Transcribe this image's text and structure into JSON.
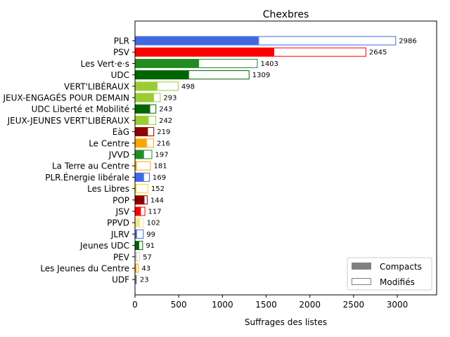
{
  "chart_data": {
    "type": "bar",
    "orientation": "horizontal",
    "stacked": true,
    "title": "Chexbres",
    "xlabel": "Suffrages des listes",
    "ylabel": "",
    "xlim": [
      0,
      3450
    ],
    "xticks": [
      0,
      500,
      1000,
      1500,
      2000,
      2500,
      3000
    ],
    "grid": false,
    "legend_position": "bottom-right",
    "categories": [
      "PLR",
      "PSV",
      "Les Vert·e·s",
      "UDC",
      "VERT'LIBÉRAUX",
      "JEUX-ENGAGÉS POUR DEMAIN",
      "UDC Liberté et Mobilité",
      "JEUX-JEUNES VERT'LIBÉRAUX",
      "EàG",
      "Le Centre",
      "JVVD",
      "La Terre au Centre",
      "PLR.Énergie libérale",
      "Les Libres",
      "POP",
      "JSV",
      "PPVD",
      "JLRV",
      "Jeunes UDC",
      "PEV",
      "Les Jeunes du Centre",
      "UDF"
    ],
    "colors": [
      "#4169e1",
      "#ff0000",
      "#228b22",
      "#006400",
      "#9acd32",
      "#9acd32",
      "#006400",
      "#9acd32",
      "#8b0000",
      "#ffa500",
      "#228b22",
      "#ffa500",
      "#4169e1",
      "#ffd700",
      "#8b0000",
      "#ff0000",
      "#f0e68c",
      "#4169e1",
      "#006400",
      "#d3d3d3",
      "#ffa500",
      "#808080"
    ],
    "totals": [
      2986,
      2645,
      1403,
      1309,
      498,
      293,
      243,
      242,
      219,
      216,
      197,
      181,
      169,
      152,
      144,
      117,
      102,
      99,
      91,
      57,
      43,
      23
    ],
    "series": [
      {
        "name": "Compacts",
        "values": [
          1410,
          1585,
          725,
          610,
          250,
          210,
          165,
          150,
          140,
          130,
          95,
          12,
          95,
          10,
          100,
          60,
          50,
          15,
          40,
          15,
          10,
          20
        ]
      },
      {
        "name": "Modifiés",
        "values": [
          1576,
          1060,
          678,
          699,
          248,
          83,
          78,
          92,
          79,
          86,
          102,
          169,
          74,
          142,
          44,
          57,
          52,
          84,
          51,
          42,
          33,
          3
        ]
      }
    ],
    "legend_colors": {
      "Compacts": "#808080",
      "Modifiés": "#ffffff"
    }
  }
}
